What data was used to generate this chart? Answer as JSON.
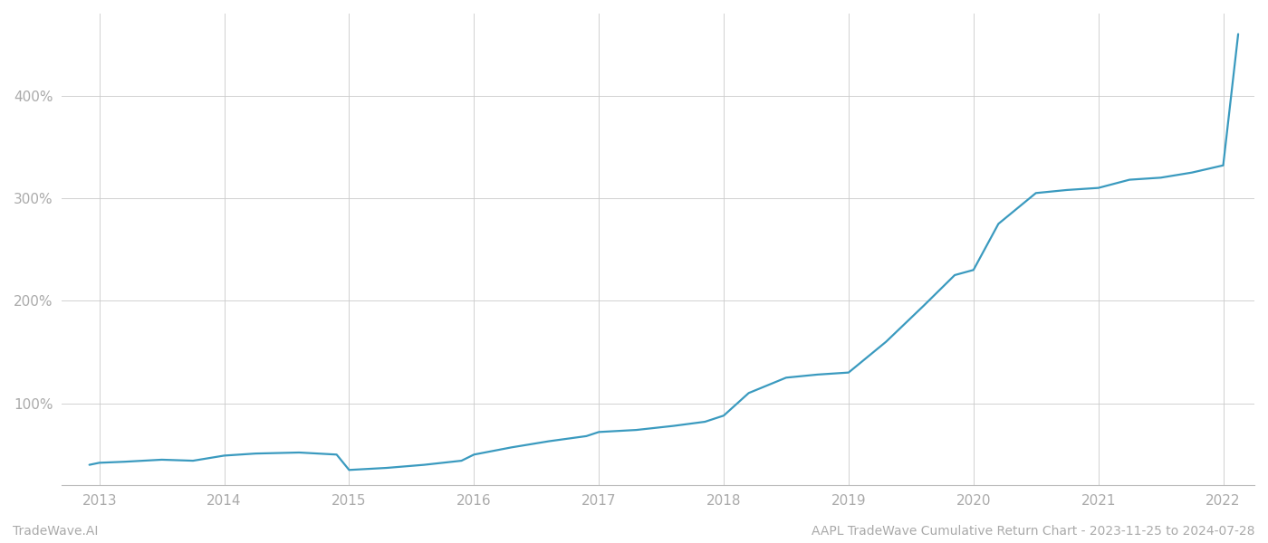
{
  "footer_left": "TradeWave.AI",
  "footer_right": "AAPL TradeWave Cumulative Return Chart - 2023-11-25 to 2024-07-28",
  "line_color": "#3a9abf",
  "background_color": "#ffffff",
  "grid_color": "#cccccc",
  "x_years": [
    2013,
    2014,
    2015,
    2016,
    2017,
    2018,
    2019,
    2020,
    2021,
    2022
  ],
  "x_data": [
    2012.92,
    2013.0,
    2013.2,
    2013.5,
    2013.75,
    2014.0,
    2014.25,
    2014.6,
    2014.9,
    2015.0,
    2015.3,
    2015.6,
    2015.9,
    2016.0,
    2016.3,
    2016.6,
    2016.9,
    2017.0,
    2017.3,
    2017.6,
    2017.85,
    2018.0,
    2018.2,
    2018.5,
    2018.75,
    2019.0,
    2019.3,
    2019.6,
    2019.85,
    2020.0,
    2020.2,
    2020.5,
    2020.75,
    2021.0,
    2021.25,
    2021.5,
    2021.75,
    2022.0,
    2022.12
  ],
  "y_data": [
    40,
    42,
    43,
    45,
    44,
    49,
    51,
    52,
    50,
    35,
    37,
    40,
    44,
    50,
    57,
    63,
    68,
    72,
    74,
    78,
    82,
    88,
    110,
    125,
    128,
    130,
    160,
    195,
    225,
    230,
    275,
    305,
    308,
    310,
    318,
    320,
    325,
    332,
    460
  ],
  "yticks": [
    100,
    200,
    300,
    400
  ],
  "ylim": [
    20,
    480
  ],
  "xlim": [
    2012.7,
    2022.25
  ],
  "line_width": 1.6,
  "tick_label_color": "#aaaaaa",
  "footer_fontsize": 10,
  "axis_label_fontsize": 11
}
